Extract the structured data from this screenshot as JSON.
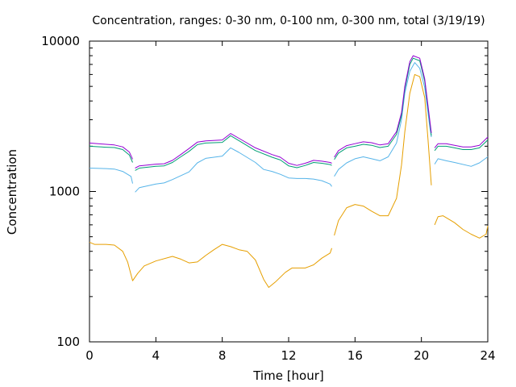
{
  "chart_data": {
    "type": "line",
    "title": "Concentration, ranges: 0-30 nm, 0-100 nm, 0-300 nm, total (3/19/19)",
    "xlabel": "Time [hour]",
    "ylabel": "Concentration",
    "xlim": [
      0,
      24
    ],
    "ylim": [
      100,
      10000
    ],
    "yscale": "log",
    "grid": false,
    "legend": "none",
    "x_ticks": [
      0,
      4,
      8,
      12,
      16,
      20,
      24
    ],
    "x_tick_labels": [
      "0",
      "4",
      "8",
      "12",
      "16",
      "20",
      "24"
    ],
    "y_ticks": [
      100,
      1000,
      10000
    ],
    "y_tick_labels": [
      "100",
      "1000",
      "10000"
    ],
    "series": [
      {
        "color": "#e69f00",
        "segments": [
          [
            [
              0,
              460
            ],
            [
              0.3,
              445
            ],
            [
              1,
              445
            ],
            [
              1.5,
              440
            ],
            [
              2,
              400
            ],
            [
              2.3,
              340
            ],
            [
              2.6,
              255
            ],
            [
              2.9,
              285
            ],
            [
              3.3,
              320
            ],
            [
              4,
              345
            ],
            [
              5,
              370
            ],
            [
              5.5,
              355
            ],
            [
              6,
              335
            ],
            [
              6.5,
              340
            ],
            [
              7,
              375
            ],
            [
              7.5,
              410
            ],
            [
              8,
              445
            ],
            [
              8.5,
              430
            ],
            [
              9,
              410
            ],
            [
              9.5,
              400
            ],
            [
              10,
              350
            ],
            [
              10.5,
              260
            ],
            [
              10.8,
              230
            ],
            [
              11.2,
              250
            ],
            [
              11.8,
              290
            ],
            [
              12.2,
              310
            ],
            [
              13,
              310
            ],
            [
              13.5,
              325
            ],
            [
              14,
              360
            ],
            [
              14.5,
              390
            ],
            [
              14.6,
              420
            ]
          ],
          [
            [
              14.75,
              510
            ],
            [
              15,
              640
            ],
            [
              15.5,
              780
            ],
            [
              16,
              820
            ],
            [
              16.5,
              800
            ],
            [
              17,
              740
            ],
            [
              17.5,
              690
            ],
            [
              18,
              690
            ],
            [
              18.5,
              900
            ],
            [
              18.8,
              1500
            ],
            [
              19,
              2500
            ],
            [
              19.3,
              4500
            ],
            [
              19.6,
              6000
            ],
            [
              19.9,
              5800
            ],
            [
              20.2,
              4200
            ],
            [
              20.4,
              2200
            ],
            [
              20.6,
              1100
            ]
          ],
          [
            [
              20.8,
              600
            ],
            [
              21,
              680
            ],
            [
              21.3,
              690
            ],
            [
              22,
              620
            ],
            [
              22.5,
              560
            ],
            [
              23,
              520
            ],
            [
              23.5,
              490
            ],
            [
              23.9,
              520
            ],
            [
              24,
              590
            ]
          ]
        ]
      },
      {
        "color": "#56b4e9",
        "segments": [
          [
            [
              0,
              1430
            ],
            [
              1,
              1420
            ],
            [
              1.5,
              1410
            ],
            [
              2,
              1360
            ],
            [
              2.5,
              1260
            ],
            [
              2.6,
              1130
            ]
          ],
          [
            [
              2.75,
              990
            ],
            [
              3,
              1060
            ],
            [
              4,
              1120
            ],
            [
              4.5,
              1140
            ],
            [
              5,
              1200
            ],
            [
              6,
              1350
            ],
            [
              6.5,
              1550
            ],
            [
              7,
              1660
            ],
            [
              8,
              1720
            ],
            [
              8.5,
              1950
            ],
            [
              9,
              1820
            ],
            [
              10,
              1560
            ],
            [
              10.5,
              1400
            ],
            [
              11,
              1360
            ],
            [
              11.5,
              1300
            ],
            [
              12,
              1230
            ],
            [
              12.5,
              1220
            ],
            [
              13,
              1220
            ],
            [
              13.5,
              1210
            ],
            [
              14,
              1180
            ],
            [
              14.5,
              1120
            ],
            [
              14.6,
              1080
            ]
          ],
          [
            [
              14.75,
              1260
            ],
            [
              15,
              1400
            ],
            [
              15.5,
              1550
            ],
            [
              16,
              1650
            ],
            [
              16.5,
              1700
            ],
            [
              17,
              1650
            ],
            [
              17.5,
              1600
            ],
            [
              18,
              1700
            ],
            [
              18.5,
              2100
            ],
            [
              18.8,
              3000
            ],
            [
              19,
              4500
            ],
            [
              19.3,
              6300
            ],
            [
              19.6,
              7200
            ],
            [
              19.9,
              6600
            ],
            [
              20.2,
              4900
            ],
            [
              20.5,
              2700
            ],
            [
              20.6,
              2300
            ]
          ],
          [
            [
              20.8,
              1520
            ],
            [
              21,
              1650
            ],
            [
              21.5,
              1600
            ],
            [
              22,
              1560
            ],
            [
              23,
              1470
            ],
            [
              23.5,
              1550
            ],
            [
              24,
              1700
            ]
          ]
        ]
      },
      {
        "color": "#009e73",
        "segments": [
          [
            [
              0,
              2000
            ],
            [
              1,
              1970
            ],
            [
              1.5,
              1960
            ],
            [
              2,
              1900
            ],
            [
              2.4,
              1750
            ],
            [
              2.6,
              1560
            ]
          ],
          [
            [
              2.75,
              1380
            ],
            [
              3,
              1430
            ],
            [
              4,
              1470
            ],
            [
              4.5,
              1480
            ],
            [
              5,
              1560
            ],
            [
              5.5,
              1700
            ],
            [
              6,
              1850
            ],
            [
              6.5,
              2050
            ],
            [
              7,
              2100
            ],
            [
              8,
              2120
            ],
            [
              8.5,
              2350
            ],
            [
              9,
              2180
            ],
            [
              10,
              1870
            ],
            [
              11,
              1690
            ],
            [
              11.5,
              1620
            ],
            [
              12,
              1480
            ],
            [
              12.5,
              1440
            ],
            [
              13,
              1490
            ],
            [
              13.5,
              1560
            ],
            [
              14,
              1540
            ],
            [
              14.5,
              1510
            ],
            [
              14.6,
              1490
            ]
          ],
          [
            [
              14.75,
              1630
            ],
            [
              15,
              1800
            ],
            [
              15.5,
              1950
            ],
            [
              16,
              2000
            ],
            [
              16.5,
              2060
            ],
            [
              17,
              2030
            ],
            [
              17.5,
              1960
            ],
            [
              18,
              2000
            ],
            [
              18.5,
              2400
            ],
            [
              18.8,
              3200
            ],
            [
              19,
              4800
            ],
            [
              19.3,
              7000
            ],
            [
              19.5,
              7700
            ],
            [
              19.9,
              7400
            ],
            [
              20.2,
              5400
            ],
            [
              20.5,
              2900
            ],
            [
              20.6,
              2350
            ]
          ],
          [
            [
              20.8,
              1870
            ],
            [
              21,
              2000
            ],
            [
              21.5,
              2000
            ],
            [
              22,
              1950
            ],
            [
              22.5,
              1900
            ],
            [
              23,
              1900
            ],
            [
              23.5,
              1950
            ],
            [
              24,
              2200
            ]
          ]
        ]
      },
      {
        "color": "#9400d3",
        "segments": [
          [
            [
              0,
              2100
            ],
            [
              1,
              2060
            ],
            [
              1.5,
              2040
            ],
            [
              2,
              1980
            ],
            [
              2.4,
              1830
            ],
            [
              2.6,
              1640
            ]
          ],
          [
            [
              2.75,
              1430
            ],
            [
              3,
              1480
            ],
            [
              4,
              1520
            ],
            [
              4.5,
              1530
            ],
            [
              5,
              1610
            ],
            [
              5.5,
              1760
            ],
            [
              6,
              1930
            ],
            [
              6.5,
              2130
            ],
            [
              7,
              2170
            ],
            [
              8,
              2200
            ],
            [
              8.5,
              2430
            ],
            [
              9,
              2260
            ],
            [
              10,
              1950
            ],
            [
              11,
              1760
            ],
            [
              11.5,
              1690
            ],
            [
              12,
              1540
            ],
            [
              12.5,
              1490
            ],
            [
              13,
              1540
            ],
            [
              13.5,
              1610
            ],
            [
              14,
              1590
            ],
            [
              14.5,
              1560
            ],
            [
              14.6,
              1540
            ]
          ],
          [
            [
              14.75,
              1690
            ],
            [
              15,
              1870
            ],
            [
              15.5,
              2020
            ],
            [
              16,
              2080
            ],
            [
              16.5,
              2140
            ],
            [
              17,
              2110
            ],
            [
              17.5,
              2040
            ],
            [
              18,
              2080
            ],
            [
              18.5,
              2500
            ],
            [
              18.8,
              3350
            ],
            [
              19,
              5000
            ],
            [
              19.3,
              7300
            ],
            [
              19.5,
              8000
            ],
            [
              19.9,
              7700
            ],
            [
              20.2,
              5600
            ],
            [
              20.5,
              3000
            ],
            [
              20.6,
              2450
            ]
          ],
          [
            [
              20.8,
              1950
            ],
            [
              21,
              2080
            ],
            [
              21.5,
              2080
            ],
            [
              22,
              2030
            ],
            [
              22.5,
              1980
            ],
            [
              23,
              1980
            ],
            [
              23.5,
              2030
            ],
            [
              24,
              2300
            ]
          ]
        ]
      }
    ]
  }
}
